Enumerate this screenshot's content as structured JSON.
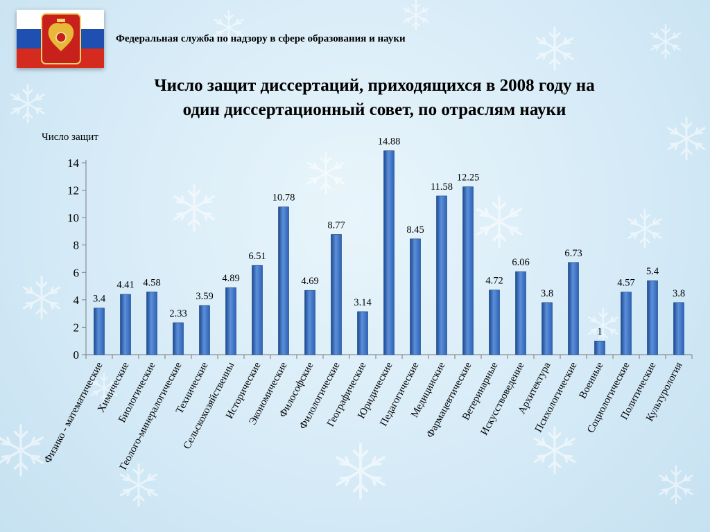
{
  "header": {
    "agency": "Федеральная служба по надзору в сфере образования и науки",
    "title_line1": "Число защит диссертаций, приходящихся в 2008 году на",
    "title_line2": "один диссертационный совет, по отраслям науки"
  },
  "colors": {
    "bar": "#2b63b8",
    "bar_light": "#5d8fd8",
    "bar_dark": "#1a4a92"
  },
  "chart_data": {
    "type": "bar",
    "title": "Число защит диссертаций, приходящихся в 2008 году на один диссертационный совет, по отраслям науки",
    "ylabel": "Число защит",
    "xlabel": "",
    "ylim": [
      0,
      14
    ],
    "yticks": [
      0,
      2,
      4,
      6,
      8,
      10,
      12,
      14
    ],
    "grid": false,
    "categories": [
      "Физико - математические",
      "Химические",
      "Биологические",
      "Геолого-минералогические",
      "Технические",
      "Сельскохозяйственны",
      "Исторические",
      "Экономические",
      "Философские",
      "Филологические",
      "Географические",
      "Юридические",
      "Педагогические",
      "Медицинские",
      "Фармацевтические",
      "Ветеринарные",
      "Искусствоведение",
      "Архитектура",
      "Психологические",
      "Военные",
      "Социологические",
      "Политические",
      "Культурология"
    ],
    "values": [
      3.4,
      4.41,
      4.58,
      2.33,
      3.59,
      4.89,
      6.51,
      10.78,
      4.69,
      8.77,
      3.14,
      14.88,
      8.45,
      11.58,
      12.25,
      4.72,
      6.06,
      3.8,
      6.73,
      1,
      4.57,
      5.4,
      3.8
    ],
    "value_labels": [
      "3.4",
      "4.41",
      "4.58",
      "2.33",
      "3.59",
      "4.89",
      "6.51",
      "10.78",
      "4.69",
      "8.77",
      "3.14",
      "14.88",
      "8.45",
      "11.58",
      "12.25",
      "4.72",
      "6.06",
      "3.8",
      "6.73",
      "1",
      "4.57",
      "5.4",
      "3.8"
    ]
  }
}
